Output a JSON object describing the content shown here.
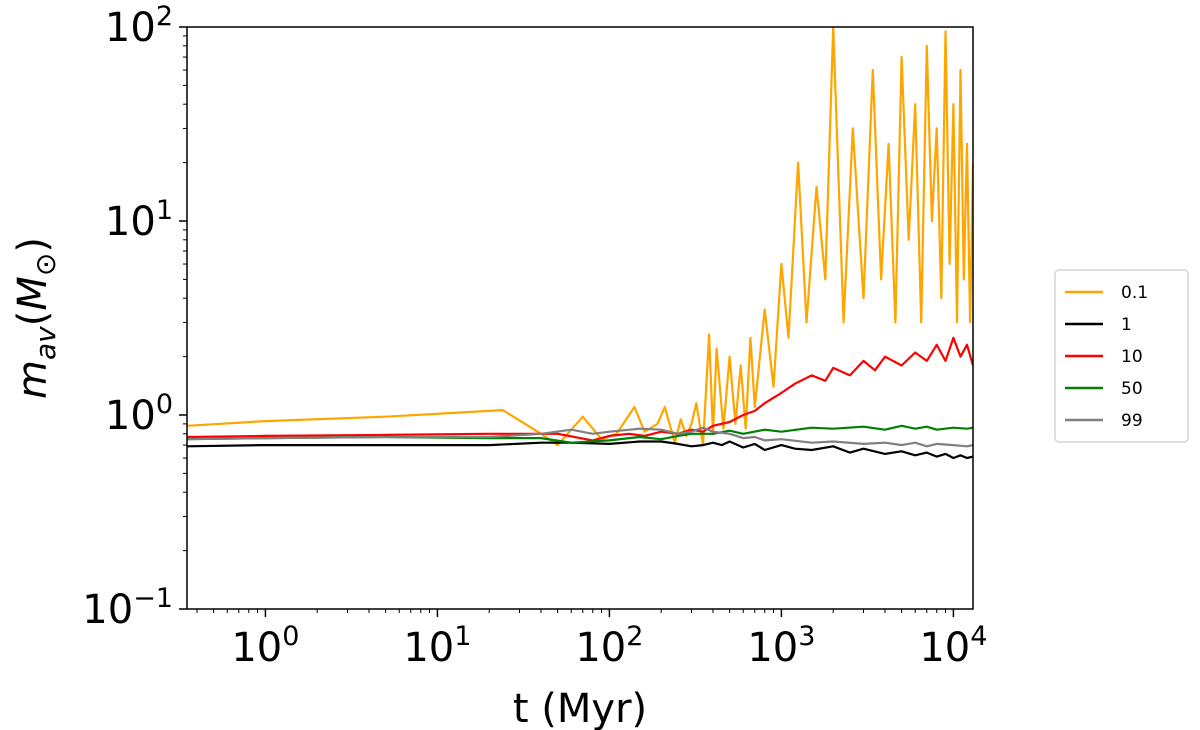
{
  "chart_data": {
    "type": "line",
    "title": "",
    "xlabel": "t (Myr)",
    "ylabel_parts": {
      "base": "m",
      "sub": "av",
      "paren_open": "(",
      "unit_base": "M",
      "unit_sub": "⊙",
      "paren_close": ")"
    },
    "x_scale": "log",
    "y_scale": "log",
    "xlim": [
      0.35,
      13000
    ],
    "ylim": [
      0.1,
      100
    ],
    "x_ticks": [
      {
        "value": 1,
        "base": "10",
        "exp": "0"
      },
      {
        "value": 10,
        "base": "10",
        "exp": "1"
      },
      {
        "value": 100,
        "base": "10",
        "exp": "2"
      },
      {
        "value": 1000,
        "base": "10",
        "exp": "3"
      },
      {
        "value": 10000,
        "base": "10",
        "exp": "4"
      }
    ],
    "y_ticks": [
      {
        "value": 0.1,
        "base": "10",
        "exp": "−1"
      },
      {
        "value": 1,
        "base": "10",
        "exp": "0"
      },
      {
        "value": 10,
        "base": "10",
        "exp": "1"
      },
      {
        "value": 100,
        "base": "10",
        "exp": "2"
      }
    ],
    "grid": false,
    "legend": {
      "position": "right-outside"
    },
    "series": [
      {
        "name": "0.1",
        "color": "#ffa500",
        "x": [
          0.35,
          1,
          5,
          24,
          40,
          50,
          70,
          90,
          110,
          140,
          160,
          190,
          210,
          240,
          260,
          280,
          300,
          320,
          350,
          380,
          400,
          420,
          460,
          500,
          540,
          580,
          620,
          660,
          700,
          800,
          900,
          1000,
          1100,
          1250,
          1400,
          1600,
          1800,
          2000,
          2300,
          2600,
          3000,
          3400,
          3800,
          4200,
          4600,
          5000,
          5500,
          6000,
          6500,
          7000,
          7500,
          8000,
          8500,
          9000,
          9500,
          10000,
          10500,
          11000,
          11500,
          12000,
          12500,
          13000
        ],
        "y": [
          0.88,
          0.93,
          0.98,
          1.06,
          0.8,
          0.7,
          0.98,
          0.75,
          0.8,
          1.1,
          0.82,
          0.9,
          1.1,
          0.72,
          0.95,
          0.78,
          0.9,
          1.15,
          0.7,
          2.6,
          0.8,
          2.2,
          0.85,
          2.0,
          0.9,
          1.8,
          0.85,
          2.5,
          1.1,
          3.5,
          1.4,
          6.0,
          2.5,
          20.0,
          3.0,
          15.0,
          5.0,
          100.0,
          3.0,
          30.0,
          4.0,
          60.0,
          5.0,
          25.0,
          3.0,
          70.0,
          8.0,
          40.0,
          3.0,
          80.0,
          10.0,
          30.0,
          4.0,
          95.0,
          6.0,
          40.0,
          3.0,
          60.0,
          5.0,
          25.0,
          3.0,
          20.0
        ]
      },
      {
        "name": "1",
        "color": "#000000",
        "x": [
          0.35,
          1,
          5,
          20,
          40,
          60,
          100,
          150,
          200,
          250,
          300,
          350,
          400,
          450,
          500,
          600,
          700,
          800,
          1000,
          1200,
          1500,
          2000,
          2500,
          3000,
          4000,
          5000,
          6000,
          7000,
          8000,
          9000,
          10000,
          11000,
          12000,
          13000
        ],
        "y": [
          0.69,
          0.7,
          0.7,
          0.7,
          0.72,
          0.72,
          0.71,
          0.73,
          0.73,
          0.71,
          0.69,
          0.7,
          0.72,
          0.7,
          0.73,
          0.68,
          0.71,
          0.66,
          0.7,
          0.67,
          0.66,
          0.69,
          0.64,
          0.67,
          0.63,
          0.65,
          0.62,
          0.64,
          0.61,
          0.63,
          0.6,
          0.62,
          0.6,
          0.61
        ]
      },
      {
        "name": "10",
        "color": "#ff0000",
        "x": [
          0.35,
          1,
          5,
          20,
          50,
          80,
          100,
          130,
          160,
          200,
          250,
          300,
          350,
          400,
          500,
          600,
          700,
          800,
          1000,
          1200,
          1500,
          1800,
          2000,
          2500,
          3000,
          3500,
          4000,
          5000,
          6000,
          7000,
          8000,
          9000,
          10000,
          11000,
          12000,
          13000
        ],
        "y": [
          0.77,
          0.78,
          0.79,
          0.8,
          0.8,
          0.74,
          0.78,
          0.8,
          0.78,
          0.82,
          0.8,
          0.84,
          0.82,
          0.88,
          0.92,
          1.0,
          1.05,
          1.15,
          1.3,
          1.45,
          1.6,
          1.5,
          1.75,
          1.6,
          1.9,
          1.7,
          2.0,
          1.8,
          2.1,
          1.9,
          2.3,
          1.9,
          2.5,
          2.0,
          2.3,
          1.8
        ]
      },
      {
        "name": "50",
        "color": "#008000",
        "x": [
          0.35,
          1,
          5,
          20,
          40,
          60,
          100,
          150,
          200,
          250,
          300,
          400,
          500,
          600,
          800,
          1000,
          1500,
          2000,
          3000,
          4000,
          5000,
          6000,
          7000,
          8000,
          10000,
          12000,
          13000
        ],
        "y": [
          0.75,
          0.76,
          0.77,
          0.76,
          0.76,
          0.72,
          0.74,
          0.77,
          0.75,
          0.78,
          0.8,
          0.8,
          0.83,
          0.8,
          0.84,
          0.82,
          0.86,
          0.85,
          0.87,
          0.84,
          0.88,
          0.85,
          0.87,
          0.84,
          0.86,
          0.85,
          0.86
        ]
      },
      {
        "name": "99",
        "color": "#808080",
        "x": [
          0.35,
          1,
          5,
          20,
          40,
          60,
          80,
          100,
          150,
          200,
          250,
          300,
          350,
          400,
          500,
          600,
          700,
          800,
          1000,
          1500,
          2000,
          3000,
          4000,
          5000,
          6000,
          7000,
          8000,
          10000,
          12000,
          13000
        ],
        "y": [
          0.75,
          0.76,
          0.77,
          0.77,
          0.8,
          0.84,
          0.8,
          0.82,
          0.85,
          0.84,
          0.8,
          0.82,
          0.86,
          0.82,
          0.8,
          0.76,
          0.77,
          0.74,
          0.75,
          0.72,
          0.73,
          0.71,
          0.72,
          0.7,
          0.72,
          0.69,
          0.71,
          0.7,
          0.69,
          0.7
        ]
      }
    ]
  }
}
